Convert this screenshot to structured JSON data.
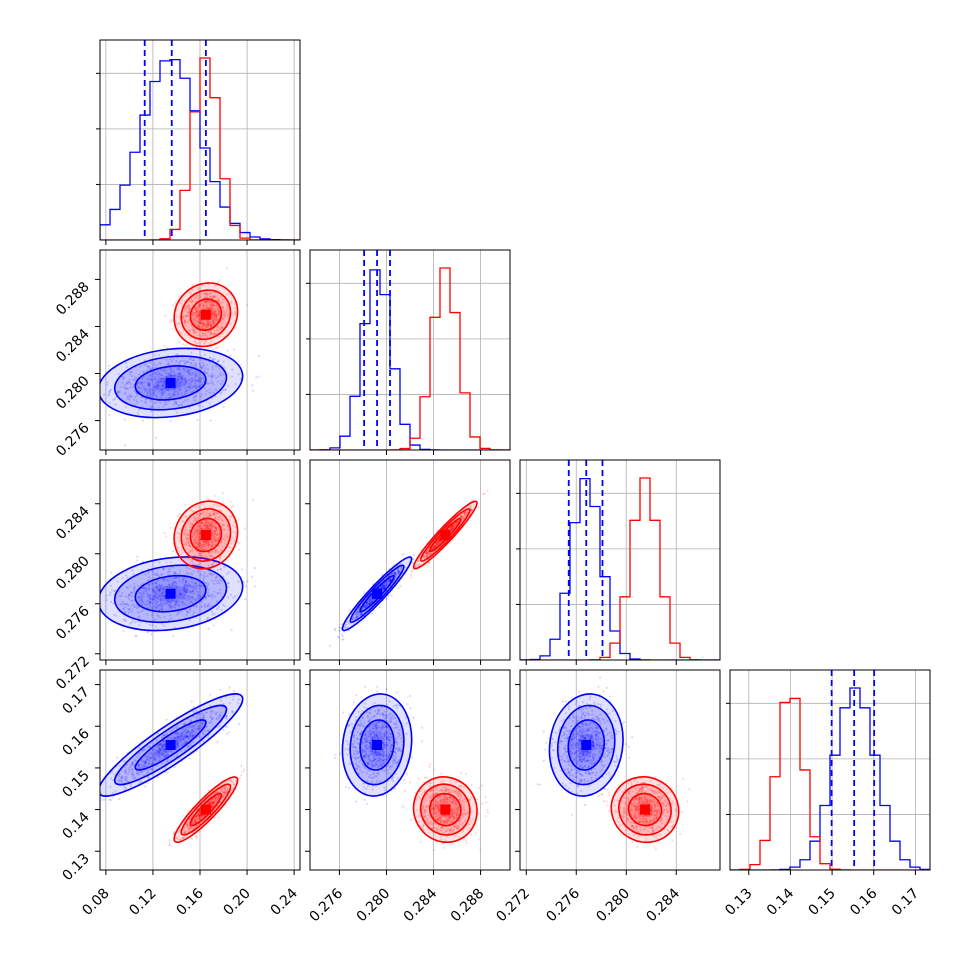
{
  "colors": {
    "series_a": "#0000ff",
    "series_b": "#ff0000",
    "grid": "#b0b0b0",
    "frame": "#000000"
  },
  "chart_data": {
    "type": "corner",
    "grid": true,
    "params": [
      {
        "range": [
          0.075,
          0.245
        ],
        "ticks": [
          0.08,
          0.12,
          0.16,
          0.2,
          0.24
        ],
        "tick_labels": [
          "0.08",
          "0.12",
          "0.16",
          "0.20",
          "0.24"
        ]
      },
      {
        "range": [
          0.2735,
          0.2905
        ],
        "ticks": [
          0.276,
          0.28,
          0.284,
          0.288
        ],
        "tick_labels": [
          "0.276",
          "0.280",
          "0.284",
          "0.288"
        ]
      },
      {
        "range": [
          0.2715,
          0.2875
        ],
        "ticks": [
          0.272,
          0.276,
          0.28,
          0.284
        ],
        "tick_labels": [
          "0.272",
          "0.276",
          "0.280",
          "0.284"
        ]
      },
      {
        "range": [
          0.1255,
          0.1735
        ],
        "ticks": [
          0.13,
          0.14,
          0.15,
          0.16,
          0.17
        ],
        "tick_labels": [
          "0.13",
          "0.14",
          "0.15",
          "0.16",
          "0.17"
        ]
      }
    ],
    "series": [
      {
        "color": "#0000ff",
        "mean": [
          0.135,
          0.2792,
          0.2768,
          0.1555
        ],
        "sd": [
          0.025,
          0.0012,
          0.0012,
          0.005
        ],
        "rho": [
          [
            0,
            0.2,
            0.2,
            0.9
          ],
          [
            0,
            0,
            0.95,
            0.1
          ],
          [
            0,
            0,
            0,
            0.1
          ]
        ],
        "quantiles": [
          [
            0.113,
            0.136,
            0.165
          ],
          [
            0.2781,
            0.2792,
            0.2803
          ],
          [
            0.2754,
            0.2768,
            0.2781
          ],
          [
            0.1499,
            0.1553,
            0.1601
          ]
        ]
      },
      {
        "color": "#ff0000",
        "mean": [
          0.165,
          0.285,
          0.2815,
          0.14
        ],
        "sd": [
          0.011,
          0.0011,
          0.0011,
          0.0032
        ],
        "rho": [
          [
            0,
            0.1,
            0.1,
            0.9
          ],
          [
            0,
            0,
            0.95,
            -0.05
          ],
          [
            0,
            0,
            0,
            -0.05
          ]
        ]
      }
    ]
  }
}
